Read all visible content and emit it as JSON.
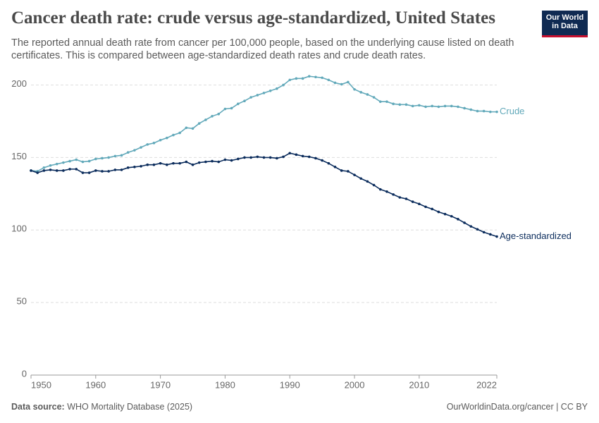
{
  "chart_data": {
    "type": "line",
    "title": "Cancer death rate: crude versus age-standardized, United States",
    "subtitle": "The reported annual death rate from cancer per 100,000 people, based on the underlying cause listed on death certificates. This is compared between age-standardized death rates and crude death rates.",
    "logo": [
      "Our World",
      "in Data"
    ],
    "source_label": "Data source:",
    "source": "WHO Mortality Database (2025)",
    "footer_right": "OurWorldinData.org/cancer | CC BY",
    "x": [
      1950,
      1951,
      1952,
      1953,
      1954,
      1955,
      1956,
      1957,
      1958,
      1959,
      1960,
      1961,
      1962,
      1963,
      1964,
      1965,
      1966,
      1967,
      1968,
      1969,
      1970,
      1971,
      1972,
      1973,
      1974,
      1975,
      1976,
      1977,
      1978,
      1979,
      1980,
      1981,
      1982,
      1983,
      1984,
      1985,
      1986,
      1987,
      1988,
      1989,
      1990,
      1991,
      1992,
      1993,
      1994,
      1995,
      1996,
      1997,
      1998,
      1999,
      2000,
      2001,
      2002,
      2003,
      2004,
      2005,
      2006,
      2007,
      2008,
      2009,
      2010,
      2011,
      2012,
      2013,
      2014,
      2015,
      2016,
      2017,
      2018,
      2019,
      2020,
      2021,
      2022
    ],
    "series": [
      {
        "name": "Crude",
        "color": "#62a9ba",
        "values": [
          141,
          140.5,
          143,
          144.5,
          145.5,
          146.5,
          147.5,
          148.5,
          147,
          147.5,
          149,
          149.5,
          150,
          151,
          151.5,
          153.5,
          155,
          157,
          159,
          160,
          162,
          163.5,
          165.5,
          167,
          170.5,
          170,
          173.5,
          176,
          178.5,
          180,
          183.5,
          184,
          187,
          189,
          191.5,
          193,
          194.5,
          196,
          197.5,
          200,
          203.5,
          204.5,
          204.5,
          206,
          205.5,
          205,
          203.5,
          201.5,
          200.5,
          202,
          197,
          195,
          193.5,
          191.5,
          188.5,
          188.5,
          187,
          186.5,
          186.5,
          185.5,
          186,
          185,
          185.5,
          185,
          185.5,
          185.5,
          185,
          184,
          183,
          182,
          182,
          181.5,
          181.5
        ]
      },
      {
        "name": "Age-standardized",
        "color": "#0b2c5c",
        "values": [
          141,
          139.5,
          141,
          141.5,
          141,
          141,
          142,
          142,
          139.5,
          139.5,
          141,
          140.5,
          140.5,
          141.5,
          141.5,
          143,
          143.5,
          144,
          145,
          145,
          146,
          145,
          146,
          146,
          147,
          145,
          146.5,
          147,
          147.5,
          147,
          148.5,
          148,
          149,
          150,
          150,
          150.5,
          150,
          150,
          149.5,
          150.5,
          153,
          152,
          151,
          150.5,
          149.5,
          148,
          146,
          143.5,
          141,
          140.5,
          138,
          135.5,
          133.5,
          131,
          128,
          126.5,
          124.5,
          122.5,
          121.5,
          119.5,
          118,
          116,
          114.5,
          112.5,
          111,
          109.5,
          107.5,
          105,
          102.5,
          100.5,
          98.5,
          97,
          95.5
        ]
      }
    ],
    "xlim": [
      1950,
      2022
    ],
    "xticks": [
      1950,
      1960,
      1970,
      1980,
      1990,
      2000,
      2010,
      2022
    ],
    "ylim": [
      0,
      210
    ],
    "yticks": [
      0,
      50,
      100,
      150,
      200
    ],
    "grid": true
  }
}
